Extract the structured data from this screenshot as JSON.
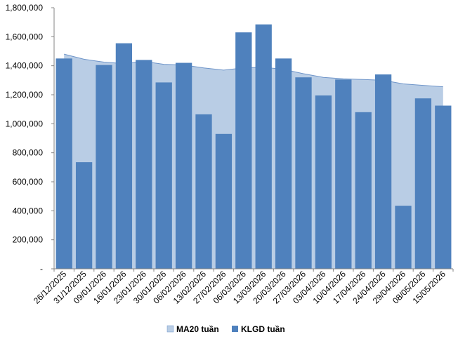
{
  "chart_data": {
    "type": "bar",
    "categories": [
      "26/12/2025",
      "31/12/2025",
      "09/01/2026",
      "16/01/2026",
      "23/01/2026",
      "30/01/2026",
      "06/02/2026",
      "13/02/2026",
      "27/02/2026",
      "06/03/2026",
      "13/03/2026",
      "20/03/2026",
      "27/03/2026",
      "03/04/2026",
      "10/04/2026",
      "17/04/2026",
      "24/04/2026",
      "29/04/2026",
      "08/05/2026",
      "15/05/2026"
    ],
    "series": [
      {
        "name": "MA20 tuần",
        "type": "area",
        "color": "#b9cde5",
        "stroke": "#6f95c9",
        "values": [
          1480000,
          1445000,
          1425000,
          1415000,
          1430000,
          1410000,
          1405000,
          1385000,
          1370000,
          1385000,
          1390000,
          1375000,
          1345000,
          1320000,
          1310000,
          1305000,
          1300000,
          1275000,
          1265000,
          1255000
        ]
      },
      {
        "name": "KLGD tuần",
        "type": "bar",
        "color": "#4f81bd",
        "values": [
          1450000,
          735000,
          1405000,
          1555000,
          1440000,
          1285000,
          1420000,
          1065000,
          930000,
          1630000,
          1685000,
          1450000,
          1320000,
          1195000,
          1305000,
          1080000,
          1340000,
          435000,
          1175000,
          1125000
        ]
      }
    ],
    "y_ticks": [
      "-",
      "200,000",
      "400,000",
      "600,000",
      "800,000",
      "1,000,000",
      "1,200,000",
      "1,400,000",
      "1,600,000",
      "1,800,000"
    ],
    "ylim": [
      0,
      1800000
    ],
    "grid": false,
    "legend_position": "bottom"
  }
}
